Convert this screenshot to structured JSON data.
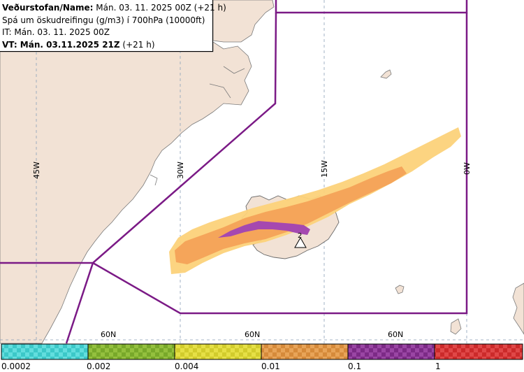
{
  "header": {
    "line1_bold": "Veðurstofan/Name:",
    "line1_rest": " Mán. 03. 11. 2025 00Z (+21 h)",
    "line2": "Spá um öskudreifingu (g/m3) í 700hPa (10000ft)",
    "line3": "IT: Mán. 03. 11. 2025 00Z",
    "line4_bold": "VT: Mán. 03.11.2025 21Z",
    "line4_rest": " (+21 h)"
  },
  "map": {
    "longitude_labels": [
      "45W",
      "30W",
      "15W",
      "0W"
    ],
    "latitude_labels": [
      "60N",
      "60N",
      "60N"
    ],
    "volcano_marker_label": "2",
    "colors": {
      "land": "#f2e2d5",
      "sea": "#ffffff",
      "boundary": "#7b1a86",
      "ash_low": "#fcd27a",
      "ash_mid": "#f5a55a",
      "ash_high": "#a548b0"
    }
  },
  "legend": {
    "labels": [
      "0.0002",
      "0.002",
      "0.004",
      "0.01",
      "0.1",
      "1"
    ],
    "colors": [
      "#3cc8c8",
      "#78a82a",
      "#d2cc2c",
      "#d68a3a",
      "#7c2a86",
      "#cc2a2a"
    ]
  }
}
